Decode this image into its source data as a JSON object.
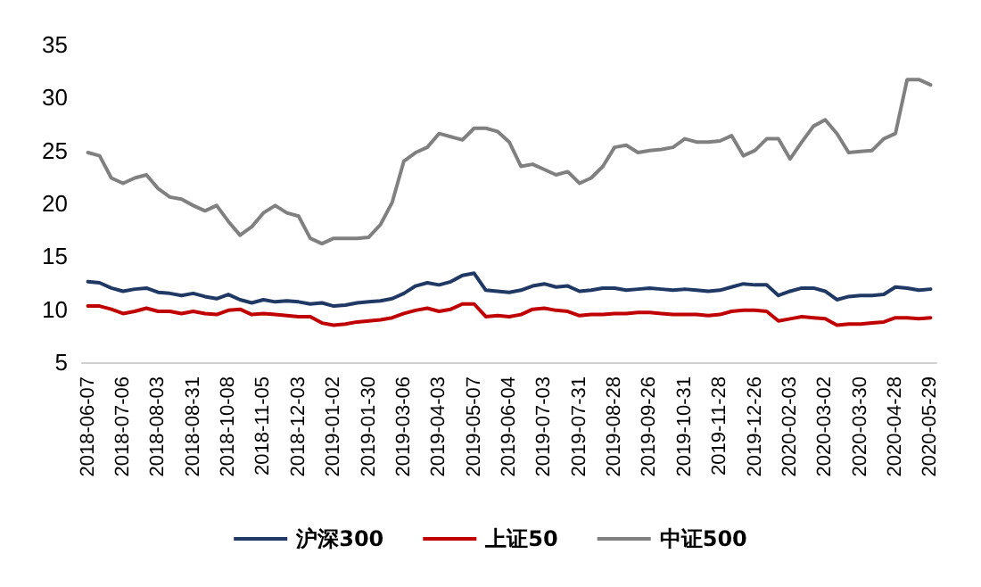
{
  "chart_data": {
    "type": "line",
    "categories": [
      "2018-06-07",
      null,
      null,
      "2018-07-06",
      null,
      null,
      "2018-08-03",
      null,
      null,
      "2018-08-31",
      null,
      null,
      "2018-10-08",
      null,
      null,
      "2018-11-05",
      null,
      null,
      "2018-12-03",
      null,
      null,
      "2019-01-02",
      null,
      null,
      "2019-01-30",
      null,
      null,
      "2019-03-06",
      null,
      null,
      "2019-04-03",
      null,
      null,
      "2019-05-07",
      null,
      null,
      "2019-06-04",
      null,
      null,
      "2019-07-03",
      null,
      null,
      "2019-07-31",
      null,
      null,
      "2019-08-28",
      null,
      null,
      "2019-09-26",
      null,
      null,
      "2019-10-31",
      null,
      null,
      "2019-11-28",
      null,
      null,
      "2019-12-26",
      null,
      null,
      "2020-02-03",
      null,
      null,
      "2020-03-02",
      null,
      null,
      "2020-03-30",
      null,
      null,
      "2020-04-28",
      null,
      null,
      "2020-05-29"
    ],
    "series": [
      {
        "name": "沪深300",
        "color": "#1f3864",
        "values": [
          12.6,
          12.5,
          12.0,
          11.7,
          11.9,
          12.0,
          11.6,
          11.5,
          11.3,
          11.5,
          11.2,
          11.0,
          11.4,
          10.9,
          10.6,
          10.9,
          10.7,
          10.8,
          10.7,
          10.5,
          10.6,
          10.3,
          10.4,
          10.6,
          10.7,
          10.8,
          11.0,
          11.5,
          12.2,
          12.5,
          12.3,
          12.6,
          13.2,
          13.4,
          11.8,
          11.7,
          11.6,
          11.8,
          12.2,
          12.4,
          12.1,
          12.2,
          11.7,
          11.8,
          12.0,
          12.0,
          11.8,
          11.9,
          12.0,
          11.9,
          11.8,
          11.9,
          11.8,
          11.7,
          11.8,
          12.1,
          12.4,
          12.3,
          12.3,
          11.3,
          11.7,
          12.0,
          12.0,
          11.7,
          10.9,
          11.2,
          11.3,
          11.3,
          11.4,
          12.1,
          12.0,
          11.8,
          11.9
        ]
      },
      {
        "name": "上证50",
        "color": "#c00000",
        "values": [
          10.3,
          10.3,
          10.0,
          9.6,
          9.8,
          10.1,
          9.8,
          9.8,
          9.6,
          9.8,
          9.6,
          9.5,
          9.9,
          10.0,
          9.5,
          9.6,
          9.5,
          9.4,
          9.3,
          9.3,
          8.7,
          8.5,
          8.6,
          8.8,
          8.9,
          9.0,
          9.2,
          9.6,
          9.9,
          10.1,
          9.8,
          10.0,
          10.5,
          10.5,
          9.3,
          9.4,
          9.3,
          9.5,
          10.0,
          10.1,
          9.9,
          9.8,
          9.4,
          9.5,
          9.5,
          9.6,
          9.6,
          9.7,
          9.7,
          9.6,
          9.5,
          9.5,
          9.5,
          9.4,
          9.5,
          9.8,
          9.9,
          9.9,
          9.8,
          8.9,
          9.1,
          9.3,
          9.2,
          9.1,
          8.5,
          8.6,
          8.6,
          8.7,
          8.8,
          9.2,
          9.2,
          9.1,
          9.2
        ]
      },
      {
        "name": "中证500",
        "color": "#808080",
        "values": [
          24.8,
          24.5,
          22.4,
          21.9,
          22.4,
          22.7,
          21.4,
          20.6,
          20.4,
          19.8,
          19.3,
          19.8,
          18.3,
          17.0,
          17.8,
          19.1,
          19.8,
          19.1,
          18.8,
          16.7,
          16.2,
          16.7,
          16.7,
          16.7,
          16.8,
          18.0,
          20.1,
          24.0,
          24.8,
          25.3,
          26.6,
          26.3,
          26.0,
          27.1,
          27.1,
          26.8,
          25.8,
          23.5,
          23.7,
          23.2,
          22.7,
          23.0,
          21.9,
          22.4,
          23.5,
          25.3,
          25.5,
          24.8,
          25.0,
          25.1,
          25.3,
          26.1,
          25.8,
          25.8,
          25.9,
          26.4,
          24.5,
          25.0,
          26.1,
          26.1,
          24.2,
          25.8,
          27.3,
          27.9,
          26.6,
          24.8,
          24.9,
          25.0,
          26.1,
          26.6,
          31.7,
          31.7,
          31.2
        ]
      }
    ],
    "ylim": [
      5,
      35
    ],
    "yticks": [
      5,
      10,
      15,
      20,
      25,
      30,
      35
    ],
    "grid": false,
    "legend": "bottom",
    "marker": "none",
    "line_style": "solid"
  }
}
